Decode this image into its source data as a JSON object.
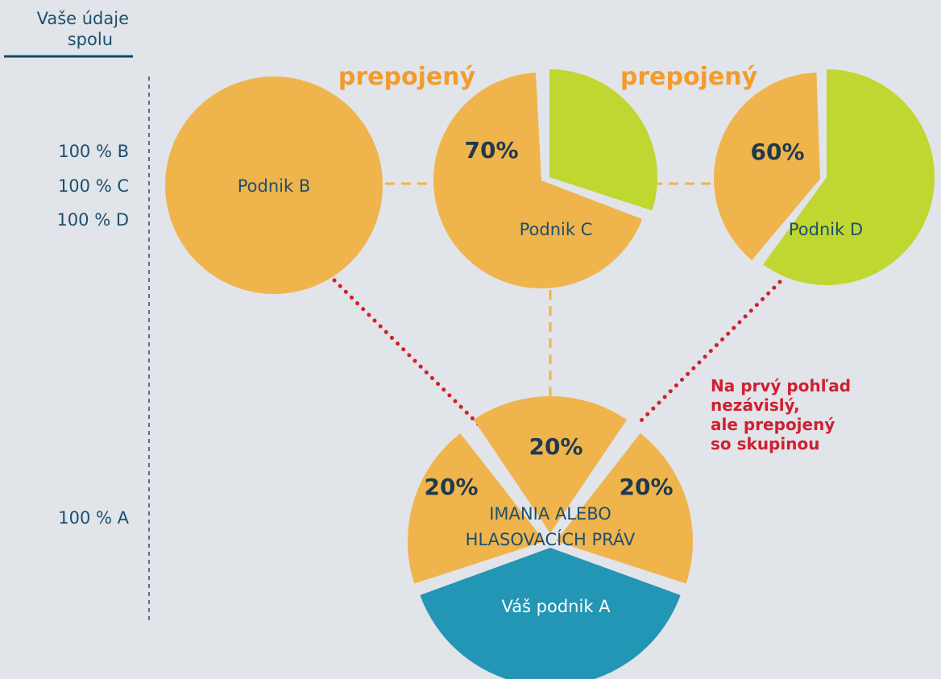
{
  "sidebar": {
    "title": [
      "Vaše údaje",
      "spolu"
    ],
    "labels": [
      "100 % B",
      "100 % C",
      "100 % D",
      "100 % A"
    ]
  },
  "links": [
    "prepojený",
    "prepojený"
  ],
  "nodes": [
    {
      "label": "Podnik B"
    },
    {
      "label": "Podnik C",
      "share": "70%"
    },
    {
      "label": "Podnik D",
      "share": "60%"
    },
    {
      "label": "Váš podnik A"
    }
  ],
  "center": {
    "shares": [
      "20%",
      "20%",
      "20%"
    ],
    "caption": [
      "IMANIA ALEBO",
      "HLASOVACÍCH PRÁV"
    ]
  },
  "note": [
    "Na prvý pohľad",
    "nezávislý,",
    "ale prepojený",
    "so skupinou"
  ]
}
